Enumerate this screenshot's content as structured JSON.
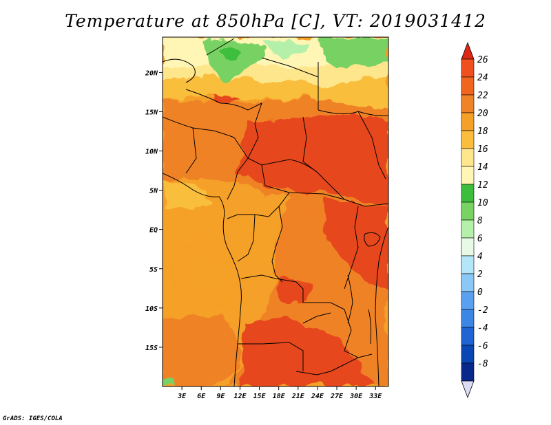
{
  "title": "Temperature at 850hPa [C], VT: 2019031412",
  "credit": "GrADS: IGES/COLA",
  "map": {
    "lon_range": [
      0,
      35
    ],
    "lat_range": [
      -20,
      24.5
    ],
    "lat_ticks": [
      {
        "value": 20,
        "label": "20N"
      },
      {
        "value": 15,
        "label": "15N"
      },
      {
        "value": 10,
        "label": "10N"
      },
      {
        "value": 5,
        "label": "5N"
      },
      {
        "value": 0,
        "label": "EQ"
      },
      {
        "value": -5,
        "label": "5S"
      },
      {
        "value": -10,
        "label": "10S"
      },
      {
        "value": -15,
        "label": "15S"
      }
    ],
    "lon_ticks": [
      {
        "value": 3,
        "label": "3E"
      },
      {
        "value": 6,
        "label": "6E"
      },
      {
        "value": 9,
        "label": "9E"
      },
      {
        "value": 12,
        "label": "12E"
      },
      {
        "value": 15,
        "label": "15E"
      },
      {
        "value": 18,
        "label": "18E"
      },
      {
        "value": 21,
        "label": "21E"
      },
      {
        "value": 24,
        "label": "24E"
      },
      {
        "value": 27,
        "label": "27E"
      },
      {
        "value": 30,
        "label": "30E"
      },
      {
        "value": 33,
        "label": "33E"
      }
    ]
  },
  "colorbar": {
    "levels": [
      {
        "label": "26",
        "color": "#f0501e"
      },
      {
        "label": "24",
        "color": "#f0661e"
      },
      {
        "label": "22",
        "color": "#f08228"
      },
      {
        "label": "20",
        "color": "#f5a028"
      },
      {
        "label": "18",
        "color": "#fabe3c"
      },
      {
        "label": "16",
        "color": "#fde68c"
      },
      {
        "label": "14",
        "color": "#fff5b4"
      },
      {
        "label": "12",
        "color": "#3cbe3c"
      },
      {
        "label": "10",
        "color": "#78d264"
      },
      {
        "label": "8",
        "color": "#b4f0aa"
      },
      {
        "label": "6",
        "color": "#e6fae6"
      },
      {
        "label": "4",
        "color": "#b4e6fa"
      },
      {
        "label": "2",
        "color": "#8cc8f5"
      },
      {
        "label": "0",
        "color": "#5aa0f0"
      },
      {
        "label": "-2",
        "color": "#3c87e6"
      },
      {
        "label": "-4",
        "color": "#1e64d2"
      },
      {
        "label": "-6",
        "color": "#0a46b4"
      },
      {
        "label": "-8",
        "color": "#08288c"
      }
    ],
    "top_arrow_color": "#dc2814",
    "bottom_cell_color": "#000064",
    "bottom_arrow_color": "#dcdcf5"
  }
}
